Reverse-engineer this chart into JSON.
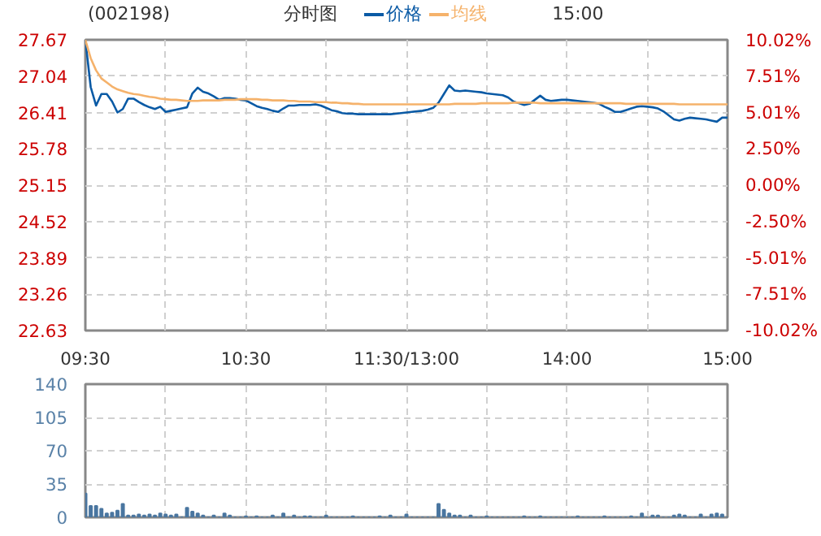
{
  "chart_data": [
    {
      "type": "line",
      "title": "(002198)",
      "subtitle": "分时图",
      "annotations": [
        "15:00"
      ],
      "legend": "top",
      "grid": true,
      "categories": [
        "09:30",
        null,
        null,
        null,
        null,
        null,
        null,
        null,
        null,
        null,
        null,
        null,
        null,
        null,
        null,
        null,
        null,
        null,
        null,
        null,
        null,
        null,
        null,
        null,
        null,
        null,
        null,
        null,
        null,
        null,
        "10:30",
        null,
        null,
        null,
        null,
        null,
        null,
        null,
        null,
        null,
        null,
        null,
        null,
        null,
        null,
        null,
        null,
        null,
        null,
        null,
        null,
        null,
        null,
        null,
        null,
        null,
        null,
        null,
        null,
        null,
        "11:30/13:00",
        null,
        null,
        null,
        null,
        null,
        null,
        null,
        null,
        null,
        null,
        null,
        null,
        null,
        null,
        null,
        null,
        null,
        null,
        null,
        null,
        null,
        null,
        null,
        null,
        null,
        null,
        null,
        null,
        null,
        "14:00",
        null,
        null,
        null,
        null,
        null,
        null,
        null,
        null,
        null,
        null,
        null,
        null,
        null,
        null,
        null,
        null,
        null,
        null,
        null,
        null,
        null,
        null,
        null,
        null,
        null,
        null,
        null,
        null,
        null,
        "15:00"
      ],
      "ylim": [
        22.63,
        27.67
      ],
      "yticks": [
        22.63,
        23.26,
        23.89,
        24.52,
        25.15,
        25.78,
        26.41,
        27.04,
        27.67
      ],
      "y2lim": [
        -10.02,
        10.02
      ],
      "y2ticks": [
        {
          "value": -10.02,
          "label": "-10.02%"
        },
        {
          "value": -7.51,
          "label": "-7.51%"
        },
        {
          "value": -5.01,
          "label": "-5.01%"
        },
        {
          "value": -2.5,
          "label": "-2.50%"
        },
        {
          "value": 0,
          "label": "0.00%"
        },
        {
          "value": 2.5,
          "label": "2.50%"
        },
        {
          "value": 5.01,
          "label": "5.01%"
        },
        {
          "value": 7.51,
          "label": "7.51%"
        },
        {
          "value": 10.02,
          "label": "10.02%"
        }
      ],
      "series": [
        {
          "name": "价格",
          "color": "#0a5aa5",
          "values": [
            27.67,
            26.85,
            26.53,
            26.73,
            26.73,
            26.6,
            26.41,
            26.47,
            26.65,
            26.65,
            26.59,
            26.54,
            26.5,
            26.47,
            26.51,
            26.42,
            26.44,
            26.46,
            26.48,
            26.5,
            26.74,
            26.84,
            26.77,
            26.74,
            26.69,
            26.63,
            26.66,
            26.66,
            26.65,
            26.63,
            26.62,
            26.57,
            26.52,
            26.49,
            26.47,
            26.44,
            26.42,
            26.48,
            26.53,
            26.53,
            26.54,
            26.54,
            26.54,
            26.55,
            26.53,
            26.49,
            26.45,
            26.43,
            26.4,
            26.39,
            26.39,
            26.38,
            26.38,
            26.38,
            26.38,
            26.38,
            26.38,
            26.38,
            26.39,
            26.4,
            26.41,
            26.42,
            26.43,
            26.44,
            26.46,
            26.49,
            26.58,
            26.73,
            26.88,
            26.79,
            26.78,
            26.79,
            26.78,
            26.77,
            26.76,
            26.74,
            26.73,
            26.72,
            26.71,
            26.67,
            26.6,
            26.57,
            26.54,
            26.56,
            26.63,
            26.7,
            26.63,
            26.61,
            26.62,
            26.63,
            26.63,
            26.62,
            26.61,
            26.6,
            26.59,
            26.58,
            26.56,
            26.51,
            26.47,
            26.42,
            26.42,
            26.45,
            26.48,
            26.51,
            26.52,
            26.51,
            26.5,
            26.48,
            26.43,
            26.36,
            26.29,
            26.27,
            26.3,
            26.32,
            26.31,
            26.3,
            26.29,
            26.27,
            26.25,
            26.32,
            26.32
          ]
        },
        {
          "name": "均线",
          "color": "#f5b26b",
          "values": [
            27.67,
            27.35,
            27.14,
            27.0,
            26.93,
            26.86,
            26.81,
            26.78,
            26.75,
            26.73,
            26.72,
            26.7,
            26.68,
            26.67,
            26.65,
            26.64,
            26.63,
            26.63,
            26.62,
            26.61,
            26.61,
            26.61,
            26.62,
            26.62,
            26.62,
            26.62,
            26.63,
            26.63,
            26.63,
            26.64,
            26.64,
            26.64,
            26.64,
            26.63,
            26.63,
            26.62,
            26.62,
            26.62,
            26.61,
            26.61,
            26.6,
            26.6,
            26.6,
            26.59,
            26.59,
            26.59,
            26.58,
            26.58,
            26.57,
            26.57,
            26.56,
            26.56,
            26.55,
            26.55,
            26.55,
            26.55,
            26.55,
            26.55,
            26.55,
            26.55,
            26.55,
            26.55,
            26.55,
            26.55,
            26.55,
            26.55,
            26.55,
            26.55,
            26.55,
            26.56,
            26.56,
            26.56,
            26.56,
            26.56,
            26.57,
            26.57,
            26.57,
            26.57,
            26.57,
            26.57,
            26.58,
            26.58,
            26.58,
            26.58,
            26.58,
            26.57,
            26.57,
            26.57,
            26.57,
            26.57,
            26.57,
            26.57,
            26.57,
            26.57,
            26.57,
            26.57,
            26.57,
            26.57,
            26.57,
            26.57,
            26.57,
            26.56,
            26.56,
            26.56,
            26.56,
            26.56,
            26.56,
            26.56,
            26.56,
            26.56,
            26.56,
            26.55,
            26.55,
            26.55,
            26.55,
            26.55,
            26.55,
            26.55,
            26.55,
            26.55,
            26.55
          ]
        }
      ]
    },
    {
      "type": "bar",
      "grid": true,
      "tick_labels": "y",
      "color": "#4a76a0",
      "categories": [
        null,
        null,
        null,
        null,
        null,
        null,
        null,
        null,
        null,
        null,
        null,
        null,
        null,
        null,
        null,
        null,
        null,
        null,
        null,
        null,
        null,
        null,
        null,
        null,
        null,
        null,
        null,
        null,
        null,
        null,
        null,
        null,
        null,
        null,
        null,
        null,
        null,
        null,
        null,
        null,
        null,
        null,
        null,
        null,
        null,
        null,
        null,
        null,
        null,
        null,
        null,
        null,
        null,
        null,
        null,
        null,
        null,
        null,
        null,
        null,
        null,
        null,
        null,
        null,
        null,
        null,
        null,
        null,
        null,
        null,
        null,
        null,
        null,
        null,
        null,
        null,
        null,
        null,
        null,
        null,
        null,
        null,
        null,
        null,
        null,
        null,
        null,
        null,
        null,
        null,
        null,
        null,
        null,
        null,
        null,
        null,
        null,
        null,
        null,
        null,
        null,
        null,
        null,
        null,
        null,
        null,
        null,
        null,
        null,
        null,
        null,
        null,
        null,
        null,
        null,
        null,
        null,
        null,
        null,
        null,
        null
      ],
      "ylim": [
        0,
        140
      ],
      "yticks": [
        0,
        35,
        70,
        105,
        140
      ],
      "values": [
        25,
        12,
        12,
        9,
        4,
        5,
        7,
        14,
        2,
        2,
        3,
        2,
        3,
        2,
        4,
        3,
        2,
        3,
        0,
        10,
        6,
        4,
        2,
        0,
        2,
        0,
        4,
        2,
        0,
        0,
        1,
        0,
        1,
        0,
        0,
        2,
        0,
        4,
        0,
        2,
        0,
        1,
        1,
        0,
        0,
        2,
        0,
        0,
        0,
        0,
        1,
        0,
        0,
        0,
        0,
        1,
        0,
        2,
        0,
        0,
        3,
        0,
        0,
        0,
        0,
        0,
        14,
        8,
        4,
        2,
        2,
        0,
        2,
        0,
        0,
        1,
        0,
        0,
        0,
        0,
        0,
        0,
        1,
        0,
        0,
        1,
        0,
        0,
        0,
        0,
        0,
        0,
        1,
        0,
        0,
        0,
        0,
        1,
        0,
        0,
        0,
        0,
        1,
        0,
        4,
        0,
        2,
        2,
        0,
        0,
        2,
        3,
        2,
        0,
        0,
        3,
        0,
        3,
        4,
        3,
        0
      ]
    }
  ]
}
